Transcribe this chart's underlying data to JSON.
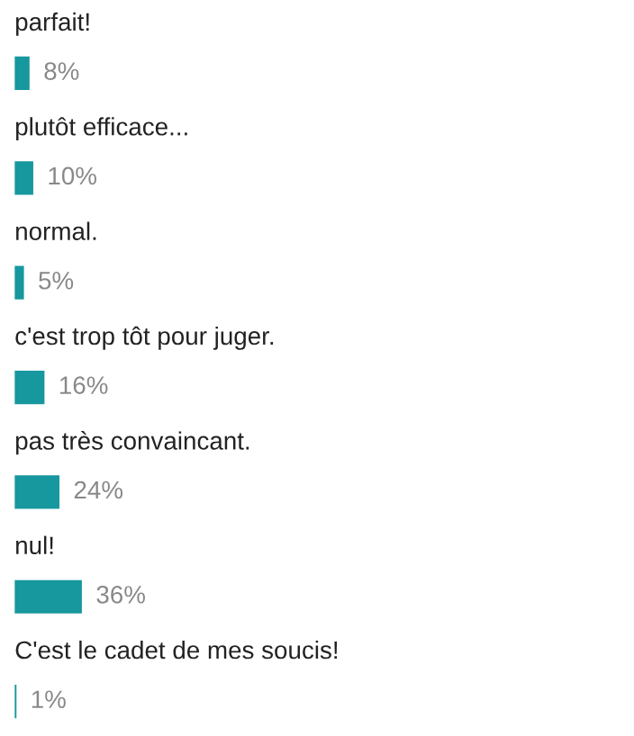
{
  "chart_data": {
    "type": "bar",
    "orientation": "horizontal",
    "categories": [
      "parfait!",
      "plutôt efficace...",
      "normal.",
      "c'est trop tôt pour juger.",
      "pas très convaincant.",
      "nul!",
      "C'est le cadet de mes soucis!"
    ],
    "values": [
      8,
      10,
      5,
      16,
      24,
      36,
      1
    ],
    "value_labels": [
      "8%",
      "10%",
      "5%",
      "16%",
      "24%",
      "36%",
      "1%"
    ],
    "color": "#17979e",
    "legend": false
  }
}
